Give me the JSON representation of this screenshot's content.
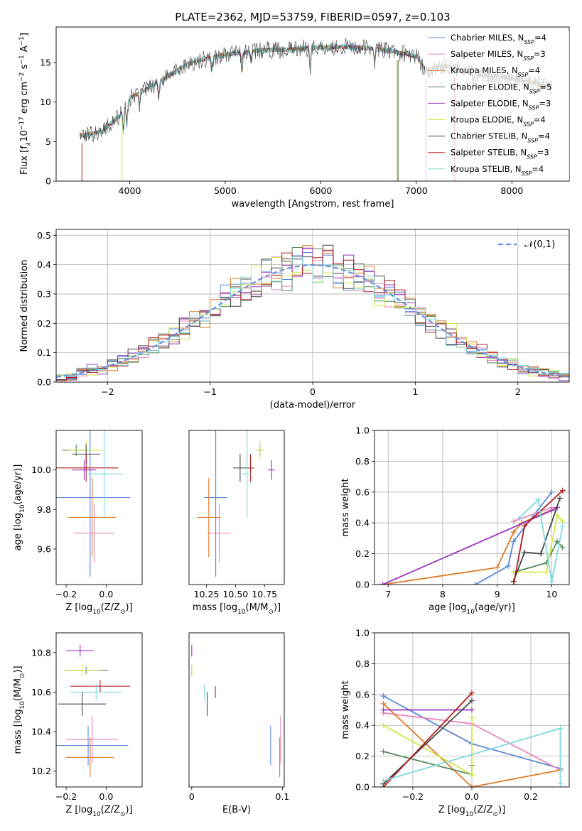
{
  "colors": [
    "#5b86db",
    "#e886bc",
    "#de7a26",
    "#558b5a",
    "#9a34c0",
    "#d2e84a",
    "#474747",
    "#b01c1c",
    "#7fd9dd"
  ],
  "ref_color": "#6b8fd8",
  "chart_data": [
    {
      "type": "line",
      "title": "PLATE=2362, MJD=53759, FIBERID=0597, z=0.103",
      "xlabel": "wavelength [Angstrom, rest frame]",
      "ylabel": "Flux [f$_\\lambda$10$^{-17}$ erg cm$^{-2}$ s$^{-1}$ A$^{-1}$]",
      "ylabel_parts": {
        "pre": "Flux [f",
        "sub": "λ",
        "mid": "10",
        "sup1": "−17",
        "mid2": " erg cm",
        "sup2": "−2",
        "mid3": " s",
        "sup3": "−1",
        "mid4": " A",
        "sup4": "−1",
        "post": "]"
      },
      "xlim": [
        3230,
        8600
      ],
      "ylim": [
        0,
        19.5
      ],
      "xticks": [
        4000,
        5000,
        6000,
        7000,
        8000
      ],
      "yticks": [
        0,
        5,
        10,
        15
      ],
      "legend_location": "right",
      "series": [
        {
          "name": "Chabrier MILES, N",
          "sub": "SSP",
          "post": "=4"
        },
        {
          "name": "Salpeter MILES, N",
          "sub": "SSP",
          "post": "=3"
        },
        {
          "name": "Kroupa MILES, N",
          "sub": "SSP",
          "post": "=4"
        },
        {
          "name": "Chabrier ELODIE, N",
          "sub": "SSP",
          "post": "=5"
        },
        {
          "name": "Salpeter ELODIE, N",
          "sub": "SSP",
          "post": "=3"
        },
        {
          "name": "Kroupa ELODIE, N",
          "sub": "SSP",
          "post": "=4"
        },
        {
          "name": "Chabrier STELIB, N",
          "sub": "SSP",
          "post": "=4"
        },
        {
          "name": "Salpeter STELIB, N",
          "sub": "SSP",
          "post": "=3"
        },
        {
          "name": "Kroupa STELIB, N",
          "sub": "SSP",
          "post": "=4"
        }
      ],
      "continuum": {
        "x": [
          3500,
          3700,
          3900,
          4000,
          4200,
          4400,
          4600,
          4800,
          5000,
          5200,
          5400,
          5600,
          5800,
          6000,
          6200,
          6400,
          6600,
          6800,
          7000,
          7100,
          7300,
          7500,
          7700,
          7900,
          8100,
          8300,
          8400
        ],
        "y": [
          5.8,
          6.2,
          8.3,
          10.5,
          11.8,
          13.3,
          14.8,
          15.5,
          16.0,
          16.3,
          16.6,
          16.6,
          16.8,
          16.9,
          17.0,
          16.9,
          16.7,
          16.3,
          15.8,
          14.0,
          14.6,
          13.8,
          13.4,
          13.2,
          12.8,
          12.2,
          12.0
        ]
      }
    },
    {
      "type": "bar",
      "xlabel": "(data-model)/error",
      "ylabel": "Normed distribution",
      "xlim": [
        -2.5,
        2.5
      ],
      "ylim": [
        0,
        0.52
      ],
      "xticks": [
        -2,
        -1,
        0,
        1,
        2
      ],
      "yticks": [
        0.0,
        0.1,
        0.2,
        0.3,
        0.4,
        0.5
      ],
      "bin_width": 0.1,
      "legend": "$\\mathcal{N}(0,1)$",
      "legend_location": "top-right",
      "reference_curve": "gaussian mean 0 sigma 1"
    },
    {
      "type": "scatter",
      "xlabel": "Z [log$_{10}$(Z/Z$_\\odot$)]",
      "ylabel": "age  [log$_{10}$(age/yr)]",
      "xlim": [
        -0.25,
        0.18
      ],
      "ylim": [
        9.42,
        10.2
      ],
      "xticks": [
        -0.2,
        0.0
      ],
      "yticks": [
        9.6,
        9.8,
        10.0
      ],
      "points": [
        {
          "x": -0.08,
          "xerr": 0.2,
          "y": 9.86,
          "yerr": 0.4
        },
        {
          "x": -0.06,
          "xerr": 0.1,
          "y": 9.68,
          "yerr": 0.15
        },
        {
          "x": -0.07,
          "xerr": 0.12,
          "y": 9.76,
          "yerr": 0.2
        },
        {
          "x": -0.15,
          "xerr": 0.07,
          "y": 10.1,
          "yerr": 0.03
        },
        {
          "x": -0.11,
          "xerr": 0.06,
          "y": 10.0,
          "yerr": 0.05
        },
        {
          "x": -0.1,
          "xerr": 0.09,
          "y": 10.1,
          "yerr": 0.05
        },
        {
          "x": -0.1,
          "xerr": 0.07,
          "y": 10.08,
          "yerr": 0.05
        },
        {
          "x": -0.1,
          "xerr": 0.16,
          "y": 10.01,
          "yerr": 0.07
        },
        {
          "x": -0.01,
          "xerr": 0.09,
          "y": 9.98,
          "yerr": 0.22
        }
      ]
    },
    {
      "type": "scatter",
      "xlabel": "mass [log$_{10}$(M/M$_\\odot$)]",
      "ylabel": "",
      "xlim": [
        10.1,
        10.92
      ],
      "ylim": [
        9.42,
        10.2
      ],
      "xticks": [
        10.25,
        10.5,
        10.75
      ],
      "points": [
        {
          "x": 10.33,
          "xerr": 0.1,
          "y": 9.86,
          "yerr": 0.4
        },
        {
          "x": 10.36,
          "xerr": 0.1,
          "y": 9.68,
          "yerr": 0.15
        },
        {
          "x": 10.27,
          "xerr": 0.1,
          "y": 9.76,
          "yerr": 0.2
        },
        {
          "x": 10.71,
          "xerr": 0.03,
          "y": 10.1,
          "yerr": 0.03
        },
        {
          "x": 10.81,
          "xerr": 0.03,
          "y": 10.0,
          "yerr": 0.05
        },
        {
          "x": 10.71,
          "xerr": 0.03,
          "y": 10.1,
          "yerr": 0.05
        },
        {
          "x": 10.54,
          "xerr": 0.06,
          "y": 10.01,
          "yerr": 0.07
        },
        {
          "x": 10.63,
          "xerr": 0.03,
          "y": 10.01,
          "yerr": 0.07
        },
        {
          "x": 10.6,
          "xerr": 0.04,
          "y": 9.98,
          "yerr": 0.22
        }
      ]
    },
    {
      "type": "line",
      "xlabel": "age  [log$_{10}$(age/yr)]",
      "ylabel": "mass weight",
      "xlim": [
        6.75,
        10.32
      ],
      "ylim": [
        0,
        1.0
      ],
      "xticks": [
        7,
        8,
        9,
        10
      ],
      "yticks": [
        0.0,
        0.2,
        0.4,
        0.6,
        0.8,
        1.0
      ],
      "grid": true,
      "series": [
        {
          "x": [
            8.6,
            9.2,
            9.3,
            10.0
          ],
          "y": [
            0.0,
            0.12,
            0.28,
            0.6
          ]
        },
        {
          "x": [
            9.3,
            10.0
          ],
          "y": [
            0.41,
            0.5
          ]
        },
        {
          "x": [
            6.9,
            9.0,
            9.3,
            9.45,
            10.1
          ],
          "y": [
            0.0,
            0.11,
            0.34,
            0.4,
            0.5
          ]
        },
        {
          "x": [
            9.3,
            9.9,
            10.1,
            10.2
          ],
          "y": [
            0.08,
            0.14,
            0.28,
            0.24
          ]
        },
        {
          "x": [
            6.9,
            10.0,
            10.1
          ],
          "y": [
            0.0,
            0.48,
            0.5
          ]
        },
        {
          "x": [
            9.3,
            9.9,
            10.1,
            10.2
          ],
          "y": [
            0.08,
            0.08,
            0.45,
            0.41
          ]
        },
        {
          "x": [
            9.3,
            9.5,
            9.8,
            10.15
          ],
          "y": [
            0.02,
            0.21,
            0.2,
            0.56
          ]
        },
        {
          "x": [
            9.3,
            9.5,
            10.2
          ],
          "y": [
            0.0,
            0.38,
            0.61
          ]
        },
        {
          "x": [
            9.4,
            9.75,
            10.0,
            10.2
          ],
          "y": [
            0.43,
            0.55,
            0.02,
            0.38
          ]
        }
      ]
    },
    {
      "type": "scatter",
      "xlabel": "Z [log$_{10}$(Z/Z$_\\odot$)]",
      "ylabel": "mass [log$_{10}$(M/M$_\\odot$)]",
      "xlim": [
        -0.25,
        0.18
      ],
      "ylim": [
        10.12,
        10.9
      ],
      "xticks": [
        -0.2,
        0.0
      ],
      "yticks": [
        10.2,
        10.4,
        10.6,
        10.8
      ],
      "points": [
        {
          "x": -0.09,
          "xerr": 0.2,
          "y": 10.33,
          "yerr": 0.1
        },
        {
          "x": -0.07,
          "xerr": 0.13,
          "y": 10.36,
          "yerr": 0.12
        },
        {
          "x": -0.08,
          "xerr": 0.12,
          "y": 10.27,
          "yerr": 0.1
        },
        {
          "x": -0.1,
          "xerr": 0.11,
          "y": 10.71,
          "yerr": 0.02
        },
        {
          "x": -0.13,
          "xerr": 0.07,
          "y": 10.81,
          "yerr": 0.03
        },
        {
          "x": -0.12,
          "xerr": 0.09,
          "y": 10.71,
          "yerr": 0.03
        },
        {
          "x": -0.12,
          "xerr": 0.12,
          "y": 10.54,
          "yerr": 0.06
        },
        {
          "x": -0.03,
          "xerr": 0.15,
          "y": 10.63,
          "yerr": 0.03
        },
        {
          "x": -0.05,
          "xerr": 0.13,
          "y": 10.6,
          "yerr": 0.04
        }
      ]
    },
    {
      "type": "scatter",
      "xlabel": "E(B-V)",
      "ylabel": "",
      "xlim": [
        -0.003,
        0.102
      ],
      "ylim": [
        10.12,
        10.9
      ],
      "xticks": [
        0,
        0.1
      ],
      "points": [
        {
          "x": 0.087,
          "y": 10.33,
          "yerr": 0.1
        },
        {
          "x": 0.098,
          "y": 10.36,
          "yerr": 0.12
        },
        {
          "x": 0.097,
          "y": 10.27,
          "yerr": 0.1
        },
        {
          "x": 0.0,
          "y": 10.71,
          "yerr": 0.02
        },
        {
          "x": 0.0,
          "y": 10.81,
          "yerr": 0.03
        },
        {
          "x": 0.0,
          "y": 10.71,
          "yerr": 0.03
        },
        {
          "x": 0.017,
          "y": 10.54,
          "yerr": 0.06
        },
        {
          "x": 0.026,
          "y": 10.6,
          "yerr": 0.03
        },
        {
          "x": 0.014,
          "y": 10.6,
          "yerr": 0.04
        }
      ]
    },
    {
      "type": "line",
      "xlabel": "Z [log$_{10}$(Z/Z$_\\odot$)]",
      "ylabel": "mass weight",
      "xlim": [
        -0.33,
        0.33
      ],
      "ylim": [
        0,
        1.0
      ],
      "xticks": [
        -0.2,
        0.0,
        0.2
      ],
      "yticks": [
        0.0,
        0.2,
        0.4,
        0.6,
        0.8,
        1.0
      ],
      "grid": true,
      "series": [
        {
          "x": [
            -0.3,
            0.0,
            0.3
          ],
          "y": [
            0.59,
            0.28,
            0.12
          ]
        },
        {
          "x": [
            -0.3,
            0.0,
            0.3
          ],
          "y": [
            0.48,
            0.41,
            0.11
          ]
        },
        {
          "x": [
            -0.3,
            0.0,
            0.3
          ],
          "y": [
            0.54,
            0.0,
            0.11
          ]
        },
        {
          "x": [
            -0.3,
            0.0,
            0.0
          ],
          "y": [
            0.23,
            0.08,
            0.14
          ]
        },
        {
          "x": [
            -0.3,
            0.0
          ],
          "y": [
            0.5,
            0.5
          ]
        },
        {
          "x": [
            -0.3,
            0.0,
            0.0
          ],
          "y": [
            0.4,
            0.08,
            0.45
          ]
        },
        {
          "x": [
            -0.3,
            0.0
          ],
          "y": [
            0.02,
            0.56
          ]
        },
        {
          "x": [
            -0.3,
            0.0
          ],
          "y": [
            0.0,
            0.61
          ]
        },
        {
          "x": [
            -0.3,
            0.3,
            0.3
          ],
          "y": [
            0.04,
            0.38,
            0.02
          ]
        }
      ]
    }
  ]
}
